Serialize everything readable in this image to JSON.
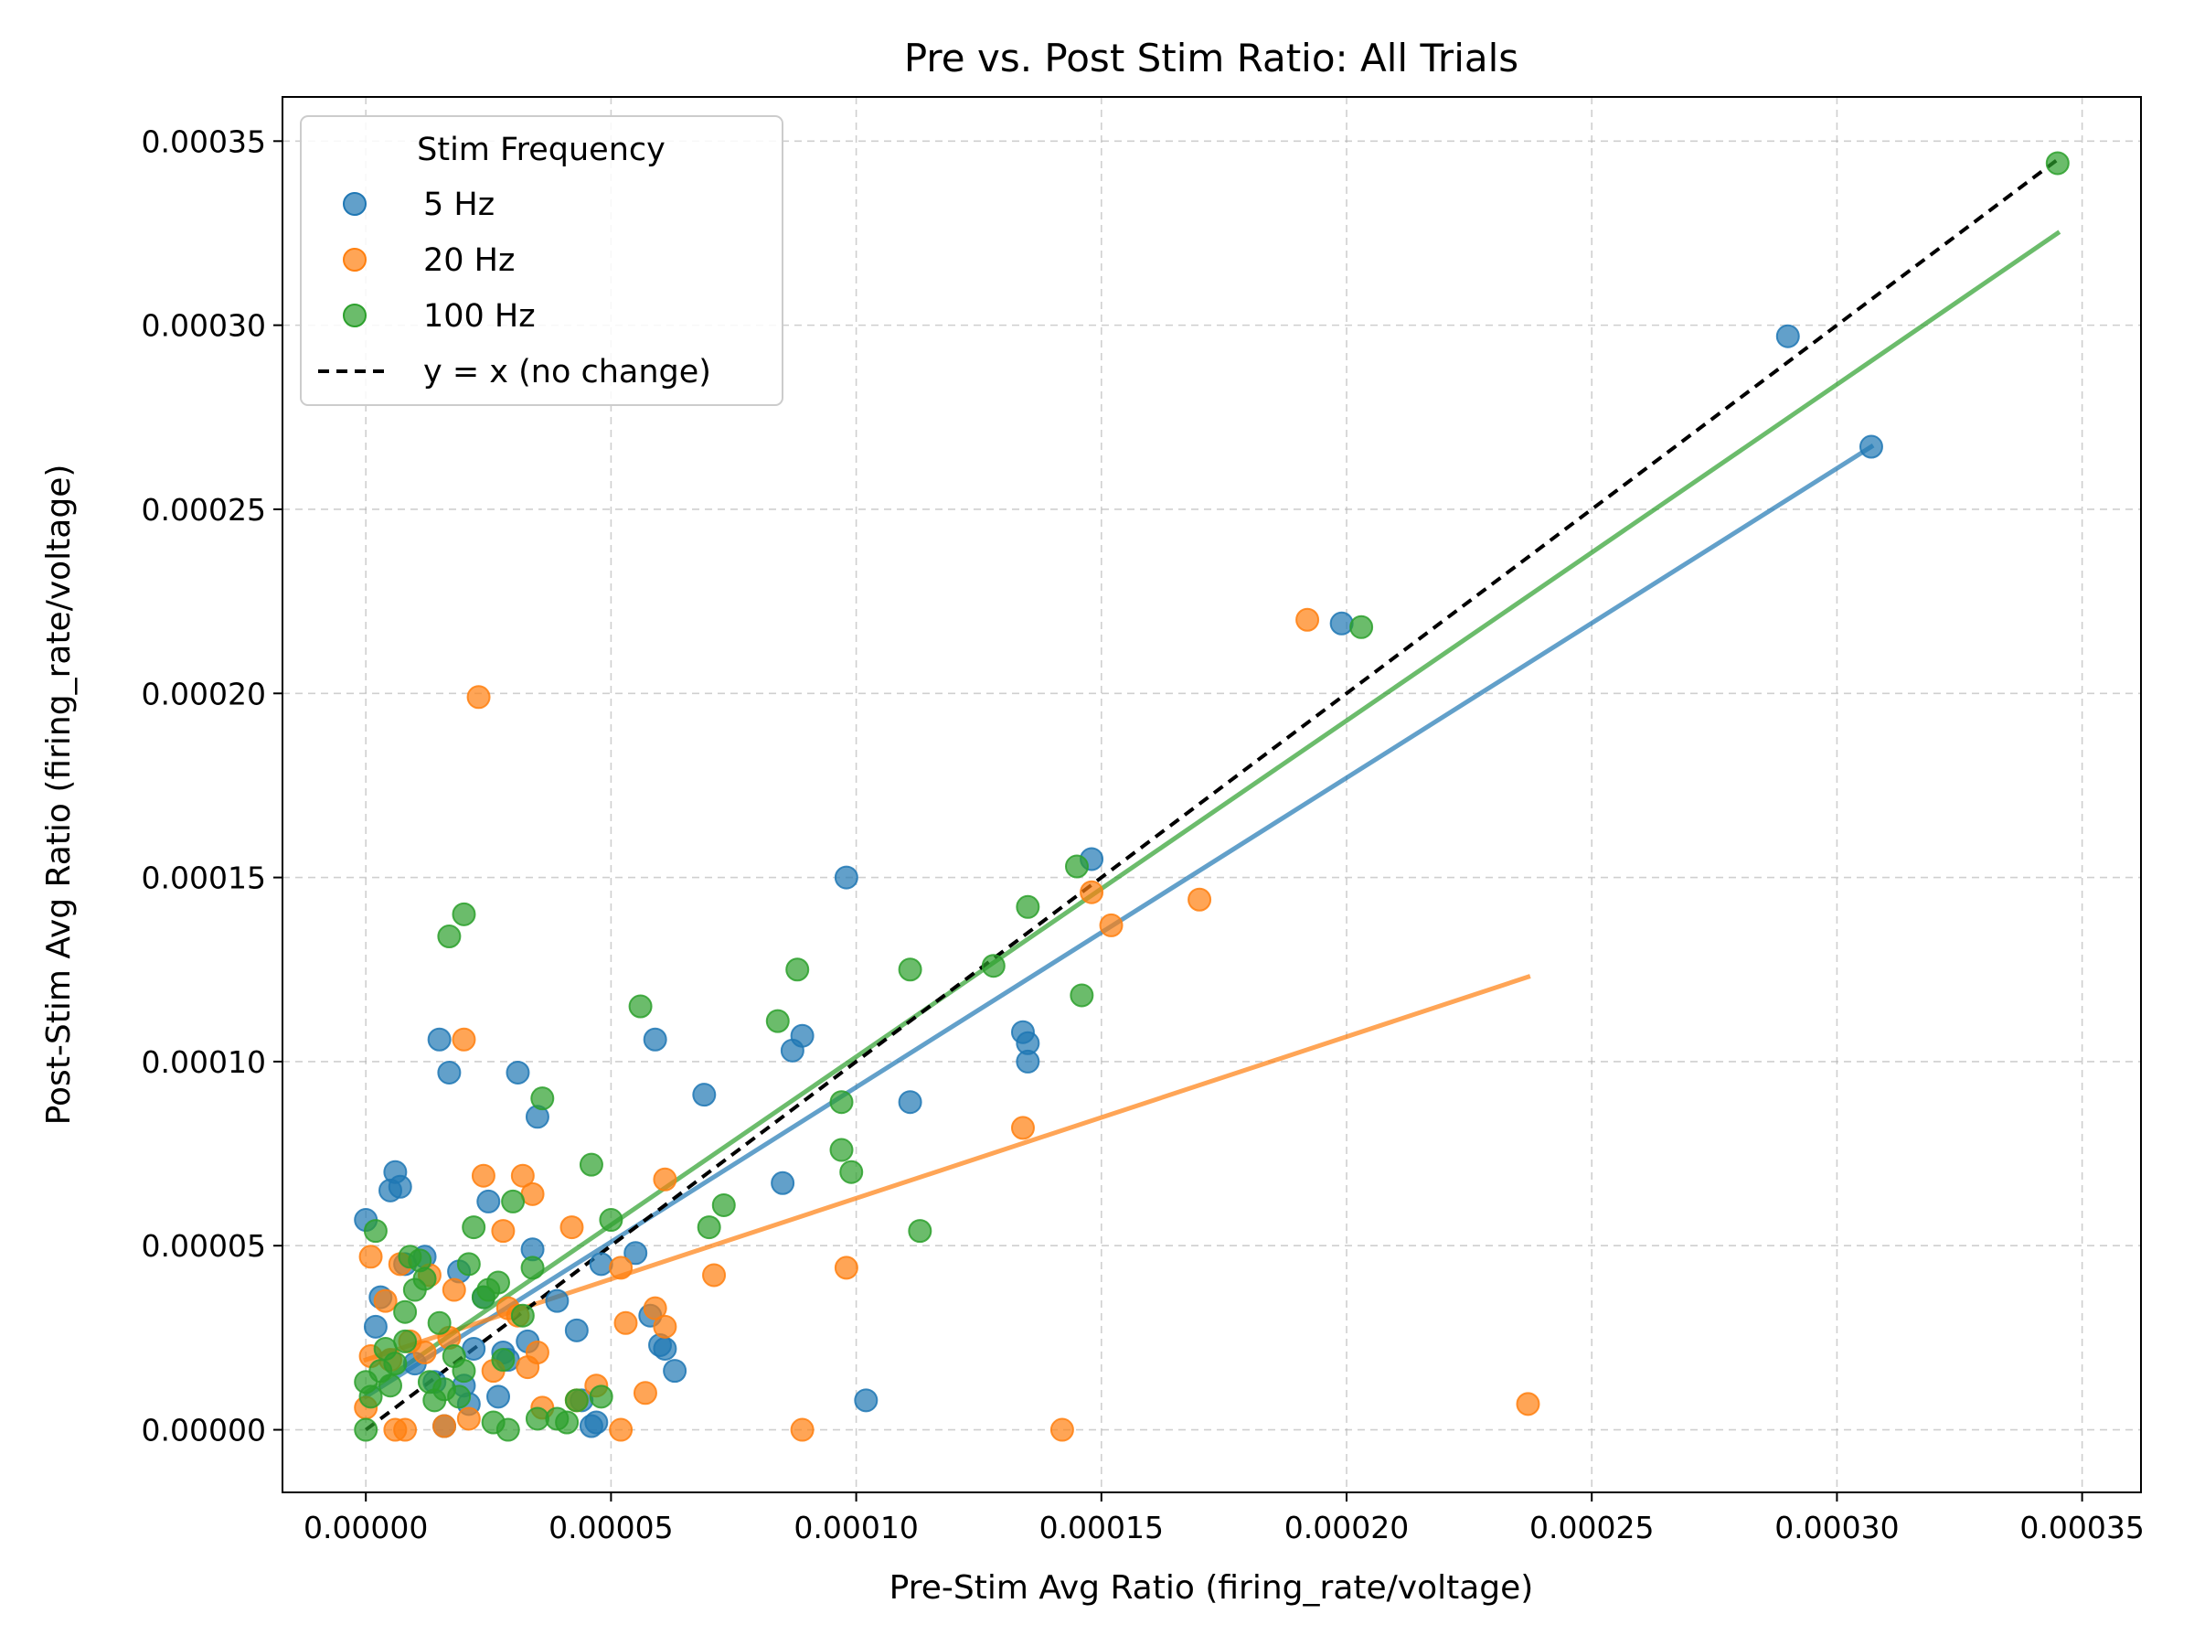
{
  "chart_data": {
    "type": "scatter",
    "title": "Pre vs. Post Stim Ratio: All Trials",
    "xlabel": "Pre-Stim Avg Ratio (firing_rate/voltage)",
    "ylabel": "Post-Stim Avg Ratio (firing_rate/voltage)",
    "xlim": [
      -1.7e-05,
      0.000362
    ],
    "ylim": [
      -1.7e-05,
      0.000362
    ],
    "xticks": [
      "0.00000",
      "0.00005",
      "0.00010",
      "0.00015",
      "0.00020",
      "0.00025",
      "0.00030",
      "0.00035"
    ],
    "yticks": [
      "0.00000",
      "0.00005",
      "0.00010",
      "0.00015",
      "0.00020",
      "0.00025",
      "0.00030",
      "0.00035"
    ],
    "tick_values": [
      0,
      5e-05,
      0.0001,
      0.00015,
      0.0002,
      0.00025,
      0.0003,
      0.00035
    ],
    "grid": true,
    "legend": {
      "title": "Stim Frequency",
      "placement": "top-left",
      "entries": [
        "5 Hz",
        "20 Hz",
        "100 Hz",
        "y = x (no change)"
      ]
    },
    "series": [
      {
        "name": "5 Hz",
        "color": "#1f77b4",
        "x": [
          0.0,
          2e-06,
          3e-06,
          5e-06,
          6e-06,
          7e-06,
          8e-06,
          1.2e-05,
          1.5e-05,
          1.6e-05,
          1.7e-05,
          1.9e-05,
          2e-05,
          2.1e-05,
          2.2e-05,
          2.5e-05,
          2.7e-05,
          2.8e-05,
          2.9e-05,
          3.1e-05,
          3.3e-05,
          3.4e-05,
          3.5e-05,
          3.9e-05,
          4.3e-05,
          4.4e-05,
          4.6e-05,
          4.7e-05,
          4.8e-05,
          5.5e-05,
          5.8e-05,
          5.9e-05,
          6e-05,
          6.1e-05,
          6.3e-05,
          6.9e-05,
          8.5e-05,
          8.7e-05,
          8.9e-05,
          9.8e-05,
          0.000102,
          0.000111,
          0.000134,
          0.000135,
          0.000135,
          0.000148,
          0.000199,
          0.00029,
          0.000307,
          1.4e-05,
          1e-05,
          2.4e-05
        ],
        "y": [
          5.7e-05,
          2.8e-05,
          3.6e-05,
          6.5e-05,
          7e-05,
          6.6e-05,
          4.5e-05,
          4.7e-05,
          0.000106,
          1e-06,
          9.7e-05,
          4.3e-05,
          1.2e-05,
          7e-06,
          2.2e-05,
          6.2e-05,
          9e-06,
          2.1e-05,
          1.9e-05,
          9.7e-05,
          2.4e-05,
          4.9e-05,
          8.5e-05,
          3.5e-05,
          2.7e-05,
          8e-06,
          1e-06,
          2e-06,
          4.5e-05,
          4.8e-05,
          3.1e-05,
          0.000106,
          2.3e-05,
          2.2e-05,
          1.6e-05,
          9.1e-05,
          6.7e-05,
          0.000103,
          0.000107,
          0.00015,
          8e-06,
          8.9e-05,
          0.000108,
          0.000105,
          0.0001,
          0.000155,
          0.000219,
          0.000297,
          0.000267,
          1.3e-05,
          1.8e-05,
          3.6e-05
        ]
      },
      {
        "name": "20 Hz",
        "color": "#ff7f0e",
        "x": [
          0.0,
          1e-06,
          1e-06,
          4e-06,
          5e-06,
          6e-06,
          7e-06,
          8e-06,
          9e-06,
          1.2e-05,
          1.6e-05,
          1.7e-05,
          2e-05,
          2.1e-05,
          2.3e-05,
          2.4e-05,
          2.6e-05,
          2.8e-05,
          3.1e-05,
          3.2e-05,
          3.3e-05,
          3.4e-05,
          3.5e-05,
          3.6e-05,
          4.2e-05,
          4.3e-05,
          4.7e-05,
          5.2e-05,
          5.2e-05,
          5.3e-05,
          5.7e-05,
          5.9e-05,
          6.1e-05,
          6.1e-05,
          7.1e-05,
          8.9e-05,
          9.8e-05,
          0.000134,
          0.000142,
          0.000148,
          0.000152,
          0.00017,
          0.000192,
          0.000237,
          1.3e-05,
          1.8e-05,
          2.9e-05
        ],
        "y": [
          6e-06,
          2e-05,
          4.7e-05,
          3.5e-05,
          1.9e-05,
          0.0,
          4.5e-05,
          0.0,
          2.4e-05,
          2.1e-05,
          1e-06,
          2.5e-05,
          0.000106,
          3e-06,
          0.000199,
          6.9e-05,
          1.6e-05,
          5.4e-05,
          3.1e-05,
          6.9e-05,
          1.7e-05,
          6.4e-05,
          2.1e-05,
          6e-06,
          5.5e-05,
          8e-06,
          1.2e-05,
          4.4e-05,
          0.0,
          2.9e-05,
          1e-05,
          3.3e-05,
          6.8e-05,
          2.8e-05,
          4.2e-05,
          0.0,
          4.4e-05,
          8.2e-05,
          0.0,
          0.000146,
          0.000137,
          0.000144,
          0.00022,
          7e-06,
          4.2e-05,
          3.8e-05,
          3.3e-05
        ]
      },
      {
        "name": "100 Hz",
        "color": "#2ca02c",
        "x": [
          0.0,
          0.0,
          1e-06,
          2e-06,
          3e-06,
          4e-06,
          5e-06,
          6e-06,
          8e-06,
          9e-06,
          1e-05,
          1.1e-05,
          1.2e-05,
          1.4e-05,
          1.5e-05,
          1.6e-05,
          1.7e-05,
          1.9e-05,
          2e-05,
          2.1e-05,
          2.2e-05,
          2.4e-05,
          2.6e-05,
          2.7e-05,
          2.8e-05,
          2.9e-05,
          3e-05,
          3.4e-05,
          3.5e-05,
          3.6e-05,
          3.9e-05,
          4.3e-05,
          4.6e-05,
          4.8e-05,
          5e-05,
          5.6e-05,
          7e-05,
          7.3e-05,
          8.4e-05,
          8.8e-05,
          9.7e-05,
          9.7e-05,
          9.9e-05,
          0.000111,
          0.000113,
          0.000128,
          0.000135,
          0.000145,
          0.000146,
          0.000203,
          0.000345,
          1.3e-05,
          1.8e-05,
          2e-05,
          3.2e-05,
          4.1e-05,
          8e-06,
          2.5e-05
        ],
        "y": [
          0.0,
          1.3e-05,
          9e-06,
          5.4e-05,
          1.6e-05,
          2.2e-05,
          1.2e-05,
          1.8e-05,
          3.2e-05,
          4.7e-05,
          3.8e-05,
          4.6e-05,
          4.1e-05,
          8e-06,
          2.9e-05,
          1.1e-05,
          0.000134,
          9e-06,
          0.00014,
          4.5e-05,
          5.5e-05,
          3.6e-05,
          2e-06,
          4e-05,
          1.9e-05,
          0.0,
          6.2e-05,
          4.4e-05,
          3e-06,
          9e-05,
          3e-06,
          8e-06,
          7.2e-05,
          9e-06,
          5.7e-05,
          0.000115,
          5.5e-05,
          6.1e-05,
          0.000111,
          0.000125,
          8.9e-05,
          7.6e-05,
          7e-05,
          0.000125,
          5.4e-05,
          0.000126,
          0.000142,
          0.000153,
          0.000118,
          0.000218,
          0.000344,
          1.3e-05,
          2e-05,
          1.6e-05,
          3.1e-05,
          2e-06,
          2.4e-05,
          3.8e-05
        ]
      }
    ],
    "fit_lines": [
      {
        "series": "5 Hz",
        "color": "#1f77b4",
        "x": [
          0.0,
          0.000307
        ],
        "y": [
          9e-06,
          0.000267
        ]
      },
      {
        "series": "20 Hz",
        "color": "#ff7f0e",
        "x": [
          0.0,
          0.000237
        ],
        "y": [
          1.9e-05,
          0.000123
        ]
      },
      {
        "series": "100 Hz",
        "color": "#2ca02c",
        "x": [
          0.0,
          0.000345
        ],
        "y": [
          1e-05,
          0.000325
        ]
      }
    ],
    "reference_line": {
      "label": "y = x (no change)",
      "color": "#000000",
      "style": "dashed",
      "x": [
        0.0,
        0.000345
      ],
      "y": [
        0.0,
        0.000345
      ]
    }
  }
}
